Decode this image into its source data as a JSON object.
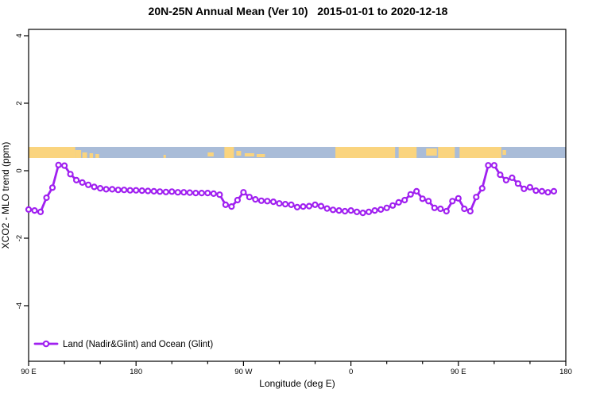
{
  "chart_data": {
    "type": "line",
    "title": "20N-25N Annual Mean (Ver 10)   2015-01-01 to 2020-12-18",
    "xlabel": "Longitude (deg E)",
    "ylabel": "XCO2 - MLO trend (ppm)",
    "xlim": [
      90,
      540
    ],
    "ylim": [
      -5.65,
      4.2
    ],
    "grid": "off",
    "x_major_ticks": [
      {
        "lon": 90,
        "label": "90 E"
      },
      {
        "lon": 180,
        "label": "180"
      },
      {
        "lon": 270,
        "label": "90 W"
      },
      {
        "lon": 360,
        "label": "0"
      },
      {
        "lon": 450,
        "label": "90 E"
      },
      {
        "lon": 540,
        "label": "180"
      }
    ],
    "x_minor_ticks": [
      120,
      150,
      210,
      240,
      300,
      330,
      390,
      420,
      480,
      510
    ],
    "y_ticks": [
      -4,
      -2,
      0,
      2,
      4
    ],
    "series": [
      {
        "name": "Land (Nadir&Glint) and Ocean (Glint)",
        "color": "#A020F0",
        "marker": "open-circle",
        "x_start": 90,
        "x_step": 5,
        "x_unit": "deg E (wrapping 90E eastward to 180)",
        "values": [
          -1.15,
          -1.18,
          -1.22,
          -0.8,
          -0.5,
          0.17,
          0.15,
          -0.1,
          -0.28,
          -0.35,
          -0.42,
          -0.48,
          -0.52,
          -0.55,
          -0.55,
          -0.57,
          -0.57,
          -0.58,
          -0.58,
          -0.59,
          -0.6,
          -0.61,
          -0.62,
          -0.63,
          -0.62,
          -0.64,
          -0.64,
          -0.65,
          -0.66,
          -0.66,
          -0.66,
          -0.68,
          -0.71,
          -1.01,
          -1.06,
          -0.87,
          -0.64,
          -0.78,
          -0.85,
          -0.89,
          -0.9,
          -0.92,
          -0.97,
          -0.99,
          -1.01,
          -1.08,
          -1.06,
          -1.05,
          -1.01,
          -1.05,
          -1.12,
          -1.16,
          -1.18,
          -1.2,
          -1.18,
          -1.22,
          -1.25,
          -1.22,
          -1.18,
          -1.15,
          -1.1,
          -1.03,
          -0.94,
          -0.87,
          -0.7,
          -0.61,
          -0.83,
          -0.9,
          -1.1,
          -1.13,
          -1.2,
          -0.9,
          -0.82,
          -1.13,
          -1.2,
          -0.78,
          -0.52,
          0.16,
          0.16,
          -0.12,
          -0.28,
          -0.21,
          -0.38,
          -0.54,
          -0.49,
          -0.59,
          -0.61,
          -0.64,
          -0.61
        ]
      }
    ],
    "legend": {
      "position": "bottom-left",
      "entries": [
        {
          "label": "Land (Nadir&Glint) and Ocean (Glint)",
          "color": "#A020F0",
          "marker": "open-circle"
        }
      ]
    },
    "map_strip": {
      "description": "land/ocean reference band near y=+0.4..+0.7 ppm",
      "ocean_color": "#A9BCD8",
      "land_color": "#FAD47E",
      "value_top": 0.71,
      "value_bottom": 0.38,
      "land_segments": [
        {
          "from": 90,
          "to": 129
        },
        {
          "from": 129,
          "to": 134,
          "ti": 4,
          "h": 10
        },
        {
          "from": 135,
          "to": 139,
          "ti": 7,
          "h": 7
        },
        {
          "from": 141,
          "to": 144,
          "ti": 8,
          "h": 6
        },
        {
          "from": 146,
          "to": 149,
          "ti": 9,
          "h": 5
        },
        {
          "from": 203,
          "to": 205,
          "ti": 10,
          "h": 4
        },
        {
          "from": 240,
          "to": 245,
          "ti": 7,
          "h": 5
        },
        {
          "from": 254,
          "to": 262
        },
        {
          "from": 264,
          "to": 268,
          "ti": 5,
          "h": 6
        },
        {
          "from": 271,
          "to": 279,
          "ti": 8,
          "h": 4
        },
        {
          "from": 281,
          "to": 288,
          "ti": 9,
          "h": 4
        },
        {
          "from": 347,
          "to": 397
        },
        {
          "from": 400,
          "to": 415
        },
        {
          "from": 423,
          "to": 432,
          "ti": 2,
          "h": 9
        },
        {
          "from": 433,
          "to": 447
        },
        {
          "from": 451,
          "to": 486
        },
        {
          "from": 487,
          "to": 490,
          "ti": 4,
          "h": 6
        }
      ]
    }
  }
}
